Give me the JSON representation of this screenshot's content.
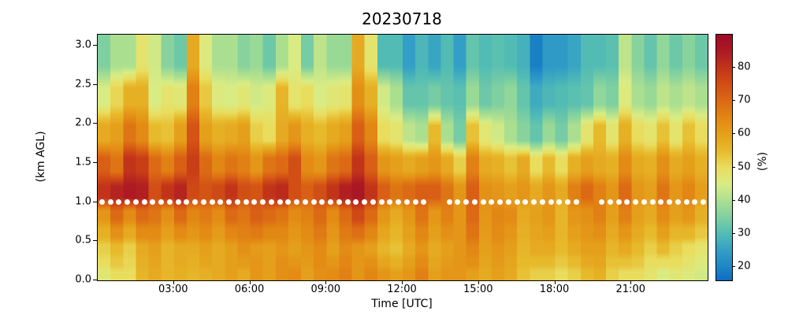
{
  "figure": {
    "title": "20230718",
    "background": "#ffffff"
  },
  "axes": {
    "xlabel": "Time [UTC]",
    "ylabel": "(km AGL)",
    "x_range_hours": [
      0,
      24
    ],
    "y_range_km": [
      0,
      3.14
    ],
    "x_ticks": [
      {
        "hour": 3,
        "label": "03:00"
      },
      {
        "hour": 6,
        "label": "06:00"
      },
      {
        "hour": 9,
        "label": "09:00"
      },
      {
        "hour": 12,
        "label": "12:00"
      },
      {
        "hour": 15,
        "label": "15:00"
      },
      {
        "hour": 18,
        "label": "18:00"
      },
      {
        "hour": 21,
        "label": "21:00"
      }
    ],
    "y_ticks": [
      {
        "km": 0.0,
        "label": "0.0"
      },
      {
        "km": 0.5,
        "label": "0.5"
      },
      {
        "km": 1.0,
        "label": "1.0"
      },
      {
        "km": 1.5,
        "label": "1.5"
      },
      {
        "km": 2.0,
        "label": "2.0"
      },
      {
        "km": 2.5,
        "label": "2.5"
      },
      {
        "km": 3.0,
        "label": "3.0"
      }
    ]
  },
  "colorbar": {
    "label": "(%)",
    "vmin": 16,
    "vmax": 90,
    "ticks": [
      20,
      30,
      40,
      50,
      60,
      70,
      80
    ],
    "stops": [
      [
        16,
        "#0c6cc4"
      ],
      [
        20,
        "#1e86c4"
      ],
      [
        25,
        "#339fc6"
      ],
      [
        30,
        "#52bcb4"
      ],
      [
        35,
        "#7fd0a0"
      ],
      [
        40,
        "#abdf90"
      ],
      [
        45,
        "#d9ec83"
      ],
      [
        50,
        "#e9dd5e"
      ],
      [
        55,
        "#e7ba2c"
      ],
      [
        60,
        "#e5a01b"
      ],
      [
        65,
        "#e28614"
      ],
      [
        70,
        "#dc6a15"
      ],
      [
        75,
        "#d14e15"
      ],
      [
        80,
        "#c23419"
      ],
      [
        85,
        "#ad1a24"
      ],
      [
        90,
        "#9c0b26"
      ]
    ]
  },
  "markers": {
    "meaning": "white dot row plotted on heatmap",
    "altitude_km": 1.0,
    "color": "#ffffff",
    "start_hour": 0.167,
    "interval_hours": 0.3333,
    "end_hour": 24,
    "gap_hours": [
      [
        12.93,
        13.62
      ],
      [
        18.95,
        19.72
      ]
    ]
  },
  "chart_data": {
    "type": "heatmap",
    "title": "20230718",
    "xlabel": "Time [UTC]",
    "ylabel": "(km AGL)",
    "value_units": "%",
    "value_label": "(%)",
    "x_start_hour": 0.25,
    "x_step_hours": 0.5,
    "n_time_steps": 48,
    "y_max_km": 3.14,
    "altitude_centers_km": [
      0.075,
      0.225,
      0.4,
      0.6,
      0.825,
      1.125,
      1.475,
      1.875,
      2.35,
      2.85
    ],
    "rows": [
      {
        "altitude_km": 0.075,
        "values": [
          47,
          50,
          50,
          56,
          58,
          56,
          57,
          56,
          57,
          58,
          60,
          58,
          62,
          60,
          63,
          64,
          60,
          63,
          64,
          66,
          62,
          65,
          62,
          60,
          62,
          66,
          60,
          62,
          62,
          60,
          58,
          60,
          58,
          54,
          52,
          52,
          50,
          52,
          55,
          57,
          52,
          50,
          50,
          48,
          45,
          47,
          46,
          44
        ]
      },
      {
        "altitude_km": 0.225,
        "values": [
          50,
          53,
          51,
          57,
          59,
          56,
          58,
          57,
          59,
          58,
          60,
          61,
          62,
          60,
          63,
          62,
          61,
          64,
          62,
          65,
          62,
          63,
          59,
          57,
          60,
          64,
          59,
          61,
          62,
          63,
          59,
          61,
          59,
          55,
          55,
          55,
          53,
          55,
          58,
          59,
          54,
          54,
          53,
          50,
          50,
          50,
          48,
          46
        ]
      },
      {
        "altitude_km": 0.4,
        "values": [
          52,
          55,
          52,
          58,
          60,
          56,
          58,
          58,
          60,
          58,
          60,
          63,
          61,
          60,
          62,
          60,
          62,
          64,
          60,
          64,
          62,
          60,
          56,
          54,
          58,
          62,
          58,
          60,
          62,
          65,
          60,
          62,
          60,
          56,
          58,
          58,
          55,
          58,
          60,
          60,
          56,
          58,
          55,
          52,
          55,
          52,
          50,
          48
        ]
      },
      {
        "altitude_km": 0.6,
        "values": [
          57,
          63,
          58,
          64,
          64,
          60,
          64,
          62,
          64,
          61,
          65,
          66,
          67,
          65,
          65,
          62,
          64,
          67,
          62,
          67,
          69,
          65,
          59,
          56,
          60,
          65,
          60,
          63,
          62,
          68,
          61,
          64,
          62,
          57,
          59,
          60,
          56,
          60,
          62,
          63,
          58,
          62,
          58,
          55,
          60,
          56,
          56,
          53
        ]
      },
      {
        "altitude_km": 0.825,
        "values": [
          62,
          70,
          64,
          70,
          68,
          63,
          70,
          65,
          67,
          64,
          70,
          68,
          72,
          70,
          68,
          64,
          66,
          70,
          64,
          70,
          76,
          70,
          62,
          58,
          62,
          68,
          62,
          66,
          62,
          70,
          62,
          65,
          64,
          58,
          60,
          62,
          56,
          62,
          63,
          66,
          60,
          66,
          60,
          58,
          64,
          60,
          62,
          57
        ]
      },
      {
        "altitude_km": 1.125,
        "values": [
          80,
          83,
          85,
          84,
          75,
          80,
          83,
          76,
          74,
          76,
          80,
          75,
          74,
          80,
          82,
          75,
          72,
          75,
          80,
          84,
          86,
          80,
          72,
          68,
          70,
          72,
          72,
          68,
          62,
          72,
          63,
          62,
          60,
          62,
          58,
          62,
          58,
          66,
          70,
          66,
          62,
          70,
          62,
          60,
          68,
          62,
          65,
          60
        ]
      },
      {
        "altitude_km": 1.475,
        "values": [
          72,
          68,
          80,
          78,
          70,
          66,
          72,
          78,
          70,
          65,
          68,
          66,
          62,
          68,
          70,
          75,
          64,
          62,
          68,
          70,
          80,
          72,
          62,
          60,
          58,
          60,
          62,
          58,
          52,
          66,
          58,
          57,
          54,
          58,
          50,
          55,
          50,
          57,
          60,
          58,
          57,
          64,
          58,
          57,
          63,
          58,
          60,
          57
        ]
      },
      {
        "altitude_km": 1.875,
        "values": [
          58,
          60,
          68,
          64,
          55,
          54,
          60,
          74,
          60,
          57,
          58,
          60,
          52,
          50,
          58,
          62,
          57,
          55,
          58,
          60,
          72,
          65,
          50,
          48,
          42,
          40,
          55,
          40,
          34,
          54,
          47,
          44,
          40,
          36,
          32,
          38,
          34,
          40,
          48,
          55,
          48,
          57,
          50,
          48,
          54,
          48,
          54,
          50
        ]
      },
      {
        "altitude_km": 2.35,
        "values": [
          45,
          51,
          57,
          57,
          45,
          48,
          47,
          66,
          53,
          46,
          45,
          47,
          44,
          46,
          56,
          48,
          50,
          45,
          47,
          48,
          63,
          57,
          44,
          40,
          32,
          32,
          34,
          32,
          31,
          38,
          33,
          35,
          37,
          32,
          27,
          29,
          30,
          31,
          32,
          37,
          35,
          46,
          40,
          38,
          42,
          40,
          42,
          40
        ]
      },
      {
        "altitude_km": 2.85,
        "values": [
          35,
          40,
          40,
          48,
          44,
          36,
          33,
          58,
          46,
          40,
          40,
          36,
          38,
          33,
          40,
          45,
          34,
          42,
          38,
          38,
          58,
          48,
          30,
          30,
          25,
          29,
          26,
          30,
          25,
          32,
          30,
          31,
          30,
          28,
          19,
          24,
          24,
          26,
          30,
          30,
          31,
          42,
          36,
          32,
          37,
          33,
          36,
          33
        ]
      }
    ]
  }
}
